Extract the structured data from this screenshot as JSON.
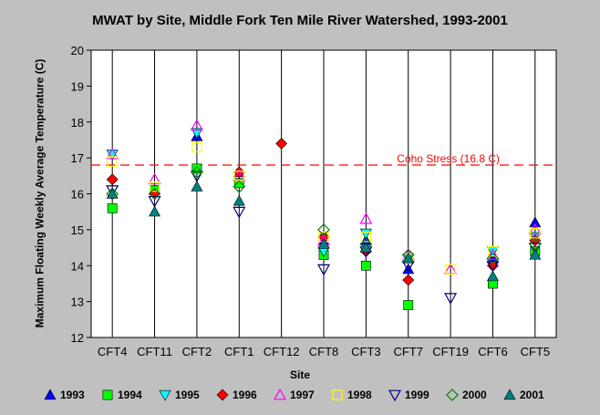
{
  "chart_data": {
    "type": "scatter",
    "title": "MWAT by Site, Middle Fork Ten Mile River Watershed, 1993-2001",
    "xlabel": "Site",
    "ylabel": "Maximum Floating Weekly Average Temperature (C)",
    "ylim": [
      12,
      20
    ],
    "yticks": [
      12,
      13,
      14,
      15,
      16,
      17,
      18,
      19,
      20
    ],
    "grid": "vertical",
    "legend_position": "bottom",
    "categories": [
      "CFT4",
      "CFT11",
      "CFT2",
      "CFT1",
      "CFT12",
      "CFT8",
      "CFT3",
      "CFT7",
      "CFT19",
      "CFT6",
      "CFT5"
    ],
    "reference_line": {
      "value": 16.8,
      "label": "Coho Stress (16.8 C)",
      "color": "#ff0000"
    },
    "series": [
      {
        "name": "1993",
        "marker": "triangle-up",
        "color": "#0000ff",
        "filled": true,
        "values": [
          null,
          null,
          17.6,
          16.6,
          null,
          14.7,
          14.7,
          13.9,
          null,
          14.2,
          15.2
        ]
      },
      {
        "name": "1994",
        "marker": "square",
        "color": "#00ff00",
        "filled": true,
        "values": [
          15.6,
          16.1,
          16.7,
          16.3,
          null,
          14.3,
          14.0,
          12.9,
          null,
          13.5,
          14.4
        ]
      },
      {
        "name": "1995",
        "marker": "triangle-down",
        "color": "#00ffff",
        "filled": true,
        "values": [
          17.1,
          null,
          17.7,
          null,
          null,
          14.4,
          14.9,
          14.2,
          null,
          14.4,
          14.8
        ]
      },
      {
        "name": "1996",
        "marker": "diamond",
        "color": "#ff0000",
        "filled": true,
        "values": [
          16.4,
          16.0,
          null,
          16.6,
          17.4,
          14.8,
          14.4,
          13.6,
          null,
          14.0,
          14.7
        ]
      },
      {
        "name": "1997",
        "marker": "triangle-up",
        "color": "#ff00ff",
        "filled": false,
        "values": [
          17.1,
          16.4,
          17.9,
          16.5,
          null,
          14.7,
          15.3,
          14.3,
          13.9,
          14.3,
          15.0
        ]
      },
      {
        "name": "1998",
        "marker": "square",
        "color": "#ffff00",
        "filled": false,
        "values": [
          16.9,
          16.2,
          17.3,
          16.5,
          null,
          14.8,
          14.8,
          14.2,
          13.9,
          14.4,
          14.9
        ]
      },
      {
        "name": "1999",
        "marker": "triangle-down",
        "color": "#000080",
        "filled": false,
        "values": [
          16.1,
          15.8,
          16.5,
          15.5,
          null,
          13.9,
          14.4,
          14.0,
          13.1,
          14.0,
          14.5
        ]
      },
      {
        "name": "2000",
        "marker": "diamond",
        "color": "#008000",
        "filled": false,
        "values": [
          16.0,
          16.0,
          16.6,
          16.2,
          null,
          15.0,
          14.6,
          14.3,
          null,
          14.2,
          14.6
        ]
      },
      {
        "name": "2001",
        "marker": "triangle-up",
        "color": "#008080",
        "filled": true,
        "values": [
          16.0,
          15.5,
          16.2,
          15.8,
          null,
          14.6,
          14.5,
          14.2,
          null,
          13.7,
          14.3
        ]
      }
    ]
  }
}
